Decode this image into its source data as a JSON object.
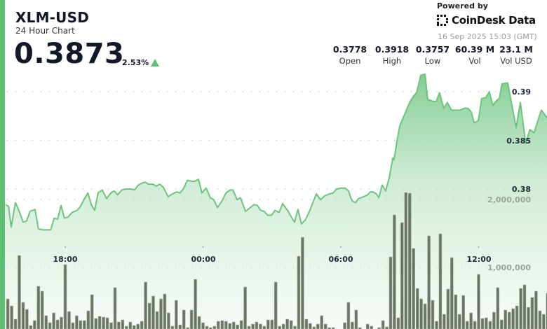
{
  "header": {
    "symbol": "XLM-USD",
    "subtitle": "24 Hour Chart",
    "price": "0.3873",
    "change": "2.53%",
    "change_direction": "up",
    "up_color": "#5fbf73"
  },
  "branding": {
    "powered_by": "Powered by",
    "logo_text": "CoinDesk Data",
    "logo_icon": "coindesk-logo-icon",
    "timestamp": "16 Sep 2025 15:03 (GMT)"
  },
  "stats": [
    {
      "value": "0.3778",
      "label": "Open"
    },
    {
      "value": "0.3918",
      "label": "High"
    },
    {
      "value": "0.3757",
      "label": "Low"
    },
    {
      "value": "60.39 M",
      "label": "Vol"
    },
    {
      "value": "23.1 M",
      "label": "Vol USD"
    }
  ],
  "chart_data": {
    "type": "area",
    "line_color": "#6cc47e",
    "volume_color": "#6b7566",
    "grid": true,
    "x_ticks": [
      "18:00",
      "00:00",
      "06:00",
      "12:00"
    ],
    "price_ticks": [
      0.39,
      0.385,
      0.38
    ],
    "price_tick_labels": [
      "0.39",
      "0.385",
      "0.38"
    ],
    "volume_ticks": [
      2000000,
      1000000
    ],
    "volume_tick_labels": [
      "2,000,000",
      "1,000,000"
    ],
    "price_series": [
      [
        "15:24",
        0.3784
      ],
      [
        "15:32",
        0.3782
      ],
      [
        "15:39",
        0.3761
      ],
      [
        "15:50",
        0.3786
      ],
      [
        "16:01",
        0.3776
      ],
      [
        "16:10",
        0.3766
      ],
      [
        "16:19",
        0.3767
      ],
      [
        "16:28",
        0.3777
      ],
      [
        "16:41",
        0.3779
      ],
      [
        "16:50",
        0.3759
      ],
      [
        "17:03",
        0.3758
      ],
      [
        "17:14",
        0.3758
      ],
      [
        "17:22",
        0.3758
      ],
      [
        "17:31",
        0.377
      ],
      [
        "17:40",
        0.3769
      ],
      [
        "17:49",
        0.3783
      ],
      [
        "17:58",
        0.377
      ],
      [
        "18:07",
        0.3771
      ],
      [
        "18:18",
        0.3776
      ],
      [
        "18:31",
        0.3778
      ],
      [
        "18:40",
        0.3782
      ],
      [
        "18:49",
        0.3789
      ],
      [
        "18:59",
        0.3796
      ],
      [
        "19:08",
        0.3784
      ],
      [
        "19:17",
        0.3778
      ],
      [
        "19:26",
        0.3796
      ],
      [
        "19:37",
        0.3799
      ],
      [
        "19:48",
        0.379
      ],
      [
        "19:59",
        0.3796
      ],
      [
        "20:08",
        0.3798
      ],
      [
        "20:17",
        0.3794
      ],
      [
        "20:28",
        0.3799
      ],
      [
        "20:39",
        0.38
      ],
      [
        "20:52",
        0.38
      ],
      [
        "21:01",
        0.3799
      ],
      [
        "21:11",
        0.3804
      ],
      [
        "21:20",
        0.3806
      ],
      [
        "21:29",
        0.3807
      ],
      [
        "21:38",
        0.3805
      ],
      [
        "21:49",
        0.3805
      ],
      [
        "21:58",
        0.3803
      ],
      [
        "22:07",
        0.3805
      ],
      [
        "22:16",
        0.3802
      ],
      [
        "22:29",
        0.3792
      ],
      [
        "22:40",
        0.3795
      ],
      [
        "22:51",
        0.3797
      ],
      [
        "23:00",
        0.3796
      ],
      [
        "23:10",
        0.3801
      ],
      [
        "23:19",
        0.3809
      ],
      [
        "23:30",
        0.3808
      ],
      [
        "23:39",
        0.3808
      ],
      [
        "23:48",
        0.381
      ],
      [
        "23:57",
        0.3796
      ],
      [
        "00:08",
        0.3801
      ],
      [
        "00:19",
        0.3791
      ],
      [
        "00:28",
        0.3789
      ],
      [
        "00:38",
        0.3781
      ],
      [
        "00:50",
        0.3788
      ],
      [
        "01:00",
        0.3796
      ],
      [
        "01:11",
        0.3799
      ],
      [
        "01:18",
        0.3799
      ],
      [
        "01:29",
        0.3789
      ],
      [
        "01:38",
        0.3791
      ],
      [
        "01:51",
        0.3777
      ],
      [
        "02:04",
        0.3781
      ],
      [
        "02:13",
        0.3784
      ],
      [
        "02:22",
        0.3783
      ],
      [
        "02:31",
        0.3778
      ],
      [
        "02:40",
        0.3777
      ],
      [
        "02:49",
        0.3773
      ],
      [
        "02:59",
        0.3773
      ],
      [
        "03:08",
        0.3778
      ],
      [
        "03:19",
        0.3776
      ],
      [
        "03:28",
        0.3785
      ],
      [
        "03:41",
        0.3778
      ],
      [
        "03:54",
        0.3769
      ],
      [
        "03:59",
        0.3766
      ],
      [
        "04:08",
        0.3779
      ],
      [
        "04:17",
        0.3764
      ],
      [
        "04:27",
        0.3768
      ],
      [
        "04:39",
        0.3778
      ],
      [
        "04:56",
        0.3795
      ],
      [
        "05:07",
        0.3789
      ],
      [
        "05:18",
        0.3793
      ],
      [
        "05:31",
        0.3795
      ],
      [
        "05:40",
        0.3796
      ],
      [
        "05:49",
        0.38
      ],
      [
        "06:02",
        0.3801
      ],
      [
        "06:11",
        0.3801
      ],
      [
        "06:20",
        0.3798
      ],
      [
        "06:29",
        0.3788
      ],
      [
        "06:38",
        0.3786
      ],
      [
        "06:46",
        0.379
      ],
      [
        "06:59",
        0.3792
      ],
      [
        "07:10",
        0.3794
      ],
      [
        "07:17",
        0.3797
      ],
      [
        "07:24",
        0.3797
      ],
      [
        "07:33",
        0.3795
      ],
      [
        "07:39",
        0.3791
      ],
      [
        "07:48",
        0.3804
      ],
      [
        "07:57",
        0.3798
      ],
      [
        "08:06",
        0.3811
      ],
      [
        "08:16",
        0.3832
      ],
      [
        "08:19",
        0.383
      ],
      [
        "08:27",
        0.385
      ],
      [
        "08:34",
        0.3865
      ],
      [
        "08:49",
        0.3879
      ],
      [
        "09:01",
        0.389
      ],
      [
        "09:11",
        0.3896
      ],
      [
        "09:18",
        0.3899
      ],
      [
        "09:29",
        0.3917
      ],
      [
        "09:40",
        0.3918
      ],
      [
        "09:47",
        0.3892
      ],
      [
        "10:02",
        0.389
      ],
      [
        "10:09",
        0.389
      ],
      [
        "10:18",
        0.3899
      ],
      [
        "10:29",
        0.3883
      ],
      [
        "10:38",
        0.3889
      ],
      [
        "10:49",
        0.3881
      ],
      [
        "11:00",
        0.3881
      ],
      [
        "11:11",
        0.3881
      ],
      [
        "11:22",
        0.3883
      ],
      [
        "11:32",
        0.3883
      ],
      [
        "11:41",
        0.3879
      ],
      [
        "11:48",
        0.3868
      ],
      [
        "11:59",
        0.387
      ],
      [
        "12:08",
        0.3893
      ],
      [
        "12:19",
        0.3894
      ],
      [
        "12:28",
        0.39
      ],
      [
        "12:37",
        0.3886
      ],
      [
        "12:47",
        0.3891
      ],
      [
        "12:54",
        0.3893
      ],
      [
        "13:01",
        0.3908
      ],
      [
        "13:16",
        0.3909
      ],
      [
        "13:27",
        0.3886
      ],
      [
        "13:38",
        0.3863
      ],
      [
        "13:49",
        0.3889
      ],
      [
        "14:03",
        0.3847
      ],
      [
        "14:14",
        0.3861
      ],
      [
        "14:25",
        0.3858
      ],
      [
        "14:37",
        0.3873
      ],
      [
        "14:44",
        0.3881
      ],
      [
        "14:59",
        0.3873
      ]
    ],
    "volume_series": {
      "first_bar": "15:30",
      "bar_minutes": 10,
      "values": [
        536000,
        433000,
        237000,
        1175000,
        485000,
        381000,
        144000,
        216000,
        722000,
        649000,
        289000,
        186000,
        330000,
        227000,
        268000,
        1041000,
        351000,
        186000,
        289000,
        216000,
        216000,
        361000,
        598000,
        247000,
        278000,
        268000,
        258000,
        186000,
        701000,
        196000,
        227000,
        134000,
        196000,
        144000,
        165000,
        206000,
        784000,
        474000,
        577000,
        351000,
        536000,
        608000,
        330000,
        134000,
        515000,
        155000,
        371000,
        113000,
        371000,
        825000,
        278000,
        186000,
        134000,
        113000,
        134000,
        206000,
        216000,
        206000,
        175000,
        196000,
        155000,
        216000,
        711000,
        134000,
        165000,
        196000,
        165000,
        134000,
        227000,
        227000,
        784000,
        134000,
        165000,
        237000,
        216000,
        134000,
        1165000,
        1443000,
        237000,
        175000,
        124000,
        165000,
        289000,
        165000,
        113000,
        113000,
        93000,
        93000,
        186000,
        485000,
        196000,
        371000,
        113000,
        93000,
        165000,
        134000,
        93000,
        113000,
        216000,
        124000,
        1155000,
        1773000,
        258000,
        1660000,
        2103000,
        2093000,
        1278000,
        691000,
        536000,
        464000,
        1464000,
        515000,
        206000,
        1495000,
        309000,
        680000,
        1144000,
        598000,
        309000,
        588000,
        206000,
        330000,
        206000,
        897000,
        247000,
        258000,
        206000,
        340000,
        701000,
        227000,
        371000,
        340000,
        392000,
        433000,
        691000,
        742000,
        412000,
        557000,
        649000,
        361000,
        309000,
        619000,
        124000
      ]
    }
  }
}
